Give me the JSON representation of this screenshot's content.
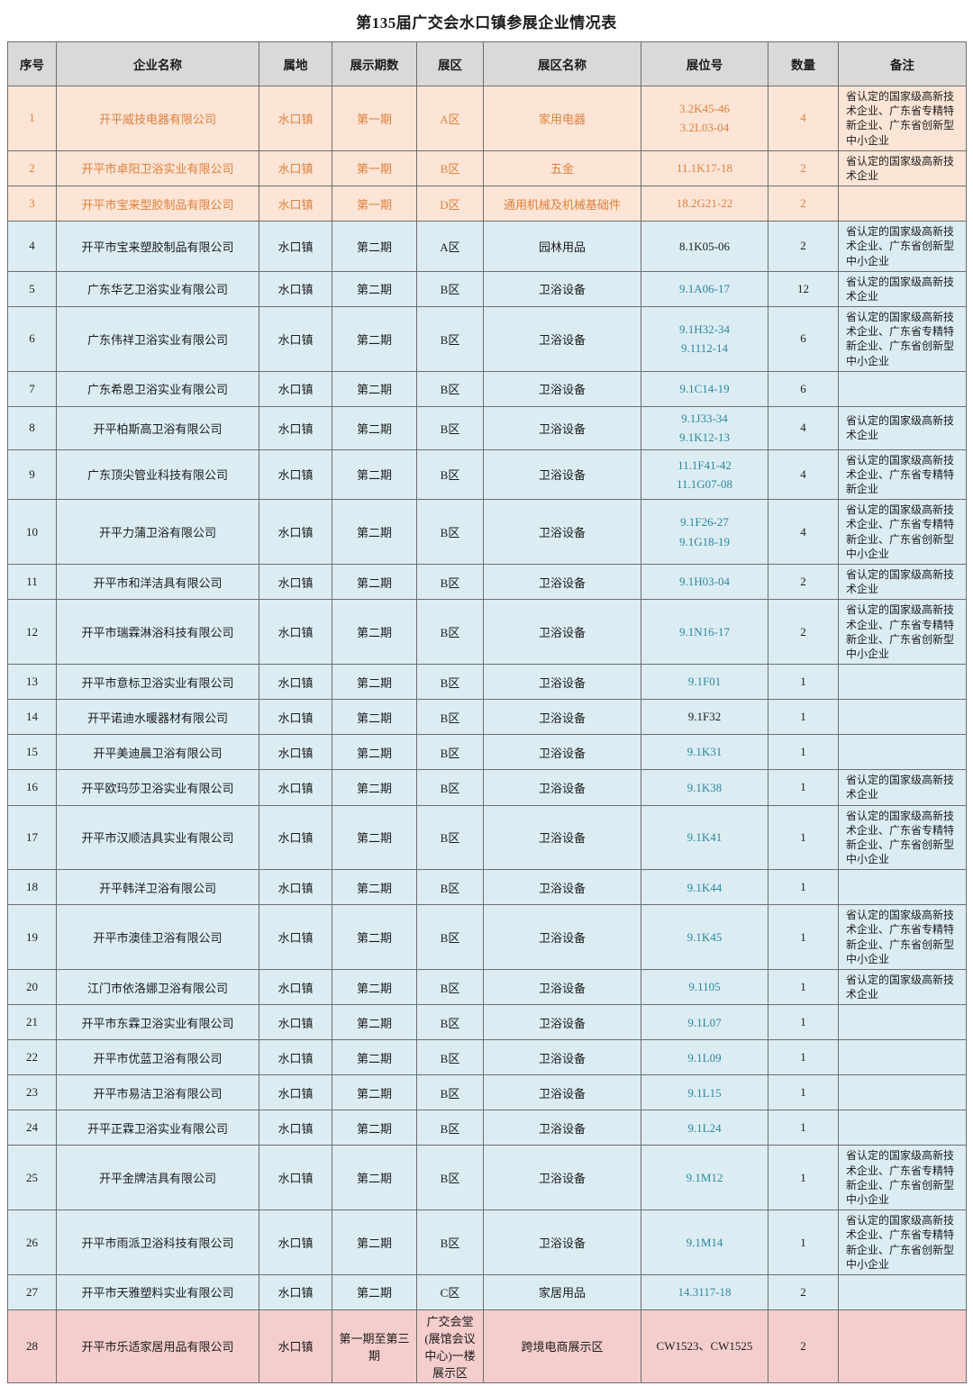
{
  "title": "第135届广交会水口镇参展企业情况表",
  "columns": [
    "序号",
    "企业名称",
    "属地",
    "展示期数",
    "展区",
    "展区名称",
    "展位号",
    "数量",
    "备注"
  ],
  "colors": {
    "header_bg": "#d9d9d9",
    "orange_bg": "#fce5d6",
    "orange_text": "#e0803c",
    "blue_bg": "#dbedf3",
    "pink_bg": "#f5cdcd",
    "teal_text": "#2e85a0",
    "border": "#6e6e6e",
    "text": "#1c1c1c"
  },
  "rows": [
    {
      "no": "1",
      "name": "开平威技电器有限公司",
      "town": "水口镇",
      "period": "第一期",
      "zone": "A区",
      "zone_name": "家用电器",
      "booths": [
        "3.2K45-46",
        "3.2L03-04"
      ],
      "qty": "4",
      "remark": "省认定的国家级高新技术企业、广东省专精特新企业、广东省创新型中小企业",
      "theme": "orange",
      "booth_teal": false
    },
    {
      "no": "2",
      "name": "开平市卓阳卫浴实业有限公司",
      "town": "水口镇",
      "period": "第一期",
      "zone": "B区",
      "zone_name": "五金",
      "booths": [
        "11.1K17-18"
      ],
      "qty": "2",
      "remark": "省认定的国家级高新技术企业",
      "theme": "orange",
      "booth_teal": false
    },
    {
      "no": "3",
      "name": "开平市宝来型胶制品有限公司",
      "town": "水口镇",
      "period": "第一期",
      "zone": "D区",
      "zone_name": "通用机械及机械基础件",
      "booths": [
        "18.2G21-22"
      ],
      "qty": "2",
      "remark": "",
      "theme": "orange",
      "booth_teal": false
    },
    {
      "no": "4",
      "name": "开平市宝来塑胶制品有限公司",
      "town": "水口镇",
      "period": "第二期",
      "zone": "A区",
      "zone_name": "园林用品",
      "booths": [
        "8.1K05-06"
      ],
      "qty": "2",
      "remark": "省认定的国家级高新技术企业、广东省创新型中小企业",
      "theme": "blue",
      "booth_teal": false
    },
    {
      "no": "5",
      "name": "广东华艺卫浴实业有限公司",
      "town": "水口镇",
      "period": "第二期",
      "zone": "B区",
      "zone_name": "卫浴设备",
      "booths": [
        "9.1A06-17"
      ],
      "qty": "12",
      "remark": "省认定的国家级高新技术企业",
      "theme": "blue",
      "booth_teal": true
    },
    {
      "no": "6",
      "name": "广东伟祥卫浴实业有限公司",
      "town": "水口镇",
      "period": "第二期",
      "zone": "B区",
      "zone_name": "卫浴设备",
      "booths": [
        "9.1H32-34",
        "9.1112-14"
      ],
      "qty": "6",
      "remark": "省认定的国家级高新技术企业、广东省专精特新企业、广东省创新型中小企业",
      "theme": "blue",
      "booth_teal": true
    },
    {
      "no": "7",
      "name": "广东希恩卫浴实业有限公司",
      "town": "水口镇",
      "period": "第二期",
      "zone": "B区",
      "zone_name": "卫浴设备",
      "booths": [
        "9.1C14-19"
      ],
      "qty": "6",
      "remark": "",
      "theme": "blue",
      "booth_teal": true
    },
    {
      "no": "8",
      "name": "开平柏斯高卫浴有限公司",
      "town": "水口镇",
      "period": "第二期",
      "zone": "B区",
      "zone_name": "卫浴设备",
      "booths": [
        "9.1J33-34",
        "9.1K12-13"
      ],
      "qty": "4",
      "remark": "省认定的国家级高新技术企业",
      "theme": "blue",
      "booth_teal": true
    },
    {
      "no": "9",
      "name": "广东顶尖管业科技有限公司",
      "town": "水口镇",
      "period": "第二期",
      "zone": "B区",
      "zone_name": "卫浴设备",
      "booths": [
        "11.1F41-42",
        "11.1G07-08"
      ],
      "qty": "4",
      "remark": "省认定的国家级高新技术企业、广东省专精特新企业",
      "theme": "blue",
      "booth_teal": true
    },
    {
      "no": "10",
      "name": "开平力蒲卫浴有限公司",
      "town": "水口镇",
      "period": "第二期",
      "zone": "B区",
      "zone_name": "卫浴设备",
      "booths": [
        "9.1F26-27",
        "9.1G18-19"
      ],
      "qty": "4",
      "remark": "省认定的国家级高新技术企业、广东省专精特新企业、广东省创新型中小企业",
      "theme": "blue",
      "booth_teal": true
    },
    {
      "no": "11",
      "name": "开平市和洋洁具有限公司",
      "town": "水口镇",
      "period": "第二期",
      "zone": "B区",
      "zone_name": "卫浴设备",
      "booths": [
        "9.1H03-04"
      ],
      "qty": "2",
      "remark": "省认定的国家级高新技术企业",
      "theme": "blue",
      "booth_teal": true
    },
    {
      "no": "12",
      "name": "开平市瑞霖淋浴科技有限公司",
      "town": "水口镇",
      "period": "第二期",
      "zone": "B区",
      "zone_name": "卫浴设备",
      "booths": [
        "9.1N16-17"
      ],
      "qty": "2",
      "remark": "省认定的国家级高新技术企业、广东省专精特新企业、广东省创新型中小企业",
      "theme": "blue",
      "booth_teal": true
    },
    {
      "no": "13",
      "name": "开平市意标卫浴实业有限公司",
      "town": "水口镇",
      "period": "第二期",
      "zone": "B区",
      "zone_name": "卫浴设备",
      "booths": [
        "9.1F01"
      ],
      "qty": "1",
      "remark": "",
      "theme": "blue",
      "booth_teal": true
    },
    {
      "no": "14",
      "name": "开平诺迪水暖器材有限公司",
      "town": "水口镇",
      "period": "第二期",
      "zone": "B区",
      "zone_name": "卫浴设备",
      "booths": [
        "9.1F32"
      ],
      "qty": "1",
      "remark": "",
      "theme": "blue",
      "booth_teal": false
    },
    {
      "no": "15",
      "name": "开平美迪晨卫浴有限公司",
      "town": "水口镇",
      "period": "第二期",
      "zone": "B区",
      "zone_name": "卫浴设备",
      "booths": [
        "9.1K31"
      ],
      "qty": "1",
      "remark": "",
      "theme": "blue",
      "booth_teal": true
    },
    {
      "no": "16",
      "name": "开平欧玛莎卫浴实业有限公司",
      "town": "水口镇",
      "period": "第二期",
      "zone": "B区",
      "zone_name": "卫浴设备",
      "booths": [
        "9.1K38"
      ],
      "qty": "1",
      "remark": "省认定的国家级高新技术企业",
      "theme": "blue",
      "booth_teal": true
    },
    {
      "no": "17",
      "name": "开平市汉顺洁具实业有限公司",
      "town": "水口镇",
      "period": "第二期",
      "zone": "B区",
      "zone_name": "卫浴设备",
      "booths": [
        "9.1K41"
      ],
      "qty": "1",
      "remark": "省认定的国家级高新技术企业、广东省专精特新企业、广东省创新型中小企业",
      "theme": "blue",
      "booth_teal": true
    },
    {
      "no": "18",
      "name": "开平韩洋卫浴有限公司",
      "town": "水口镇",
      "period": "第二期",
      "zone": "B区",
      "zone_name": "卫浴设备",
      "booths": [
        "9.1K44"
      ],
      "qty": "1",
      "remark": "",
      "theme": "blue",
      "booth_teal": true
    },
    {
      "no": "19",
      "name": "开平市澳佳卫浴有限公司",
      "town": "水口镇",
      "period": "第二期",
      "zone": "B区",
      "zone_name": "卫浴设备",
      "booths": [
        "9.1K45"
      ],
      "qty": "1",
      "remark": "省认定的国家级高新技术企业、广东省专精特新企业、广东省创新型中小企业",
      "theme": "blue",
      "booth_teal": true
    },
    {
      "no": "20",
      "name": "江门市依洛娜卫浴有限公司",
      "town": "水口镇",
      "period": "第二期",
      "zone": "B区",
      "zone_name": "卫浴设备",
      "booths": [
        "9.1105"
      ],
      "qty": "1",
      "remark": "省认定的国家级高新技术企业",
      "theme": "blue",
      "booth_teal": true
    },
    {
      "no": "21",
      "name": "开平市东霖卫浴实业有限公司",
      "town": "水口镇",
      "period": "第二期",
      "zone": "B区",
      "zone_name": "卫浴设备",
      "booths": [
        "9.1L07"
      ],
      "qty": "1",
      "remark": "",
      "theme": "blue",
      "booth_teal": true
    },
    {
      "no": "22",
      "name": "开平市优蓝卫浴有限公司",
      "town": "水口镇",
      "period": "第二期",
      "zone": "B区",
      "zone_name": "卫浴设备",
      "booths": [
        "9.1L09"
      ],
      "qty": "1",
      "remark": "",
      "theme": "blue",
      "booth_teal": true
    },
    {
      "no": "23",
      "name": "开平市易洁卫浴有限公司",
      "town": "水口镇",
      "period": "第二期",
      "zone": "B区",
      "zone_name": "卫浴设备",
      "booths": [
        "9.1L15"
      ],
      "qty": "1",
      "remark": "",
      "theme": "blue",
      "booth_teal": true
    },
    {
      "no": "24",
      "name": "开平正霖卫浴实业有限公司",
      "town": "水口镇",
      "period": "第二期",
      "zone": "B区",
      "zone_name": "卫浴设备",
      "booths": [
        "9.1L24"
      ],
      "qty": "1",
      "remark": "",
      "theme": "blue",
      "booth_teal": true
    },
    {
      "no": "25",
      "name": "开平金牌洁具有限公司",
      "town": "水口镇",
      "period": "第二期",
      "zone": "B区",
      "zone_name": "卫浴设备",
      "booths": [
        "9.1M12"
      ],
      "qty": "1",
      "remark": "省认定的国家级高新技术企业、广东省专精特新企业、广东省创新型中小企业",
      "theme": "blue",
      "booth_teal": true
    },
    {
      "no": "26",
      "name": "开平市雨派卫浴科技有限公司",
      "town": "水口镇",
      "period": "第二期",
      "zone": "B区",
      "zone_name": "卫浴设备",
      "booths": [
        "9.1M14"
      ],
      "qty": "1",
      "remark": "省认定的国家级高新技术企业、广东省专精特新企业、广东省创新型中小企业",
      "theme": "blue",
      "booth_teal": true
    },
    {
      "no": "27",
      "name": "开平市天雅塑料实业有限公司",
      "town": "水口镇",
      "period": "第二期",
      "zone": "C区",
      "zone_name": "家居用品",
      "booths": [
        "14.3117-18"
      ],
      "qty": "2",
      "remark": "",
      "theme": "blue",
      "booth_teal": true
    },
    {
      "no": "28",
      "name": "开平市乐适家居用品有限公司",
      "town": "水口镇",
      "period": "第一期至第三期",
      "zone": "广交会堂(展馆会议中心)一楼展示区",
      "zone_name": "跨境电商展示区",
      "booths": [
        "CW1523、CW1525"
      ],
      "qty": "2",
      "remark": "",
      "theme": "pink",
      "booth_teal": false
    }
  ]
}
